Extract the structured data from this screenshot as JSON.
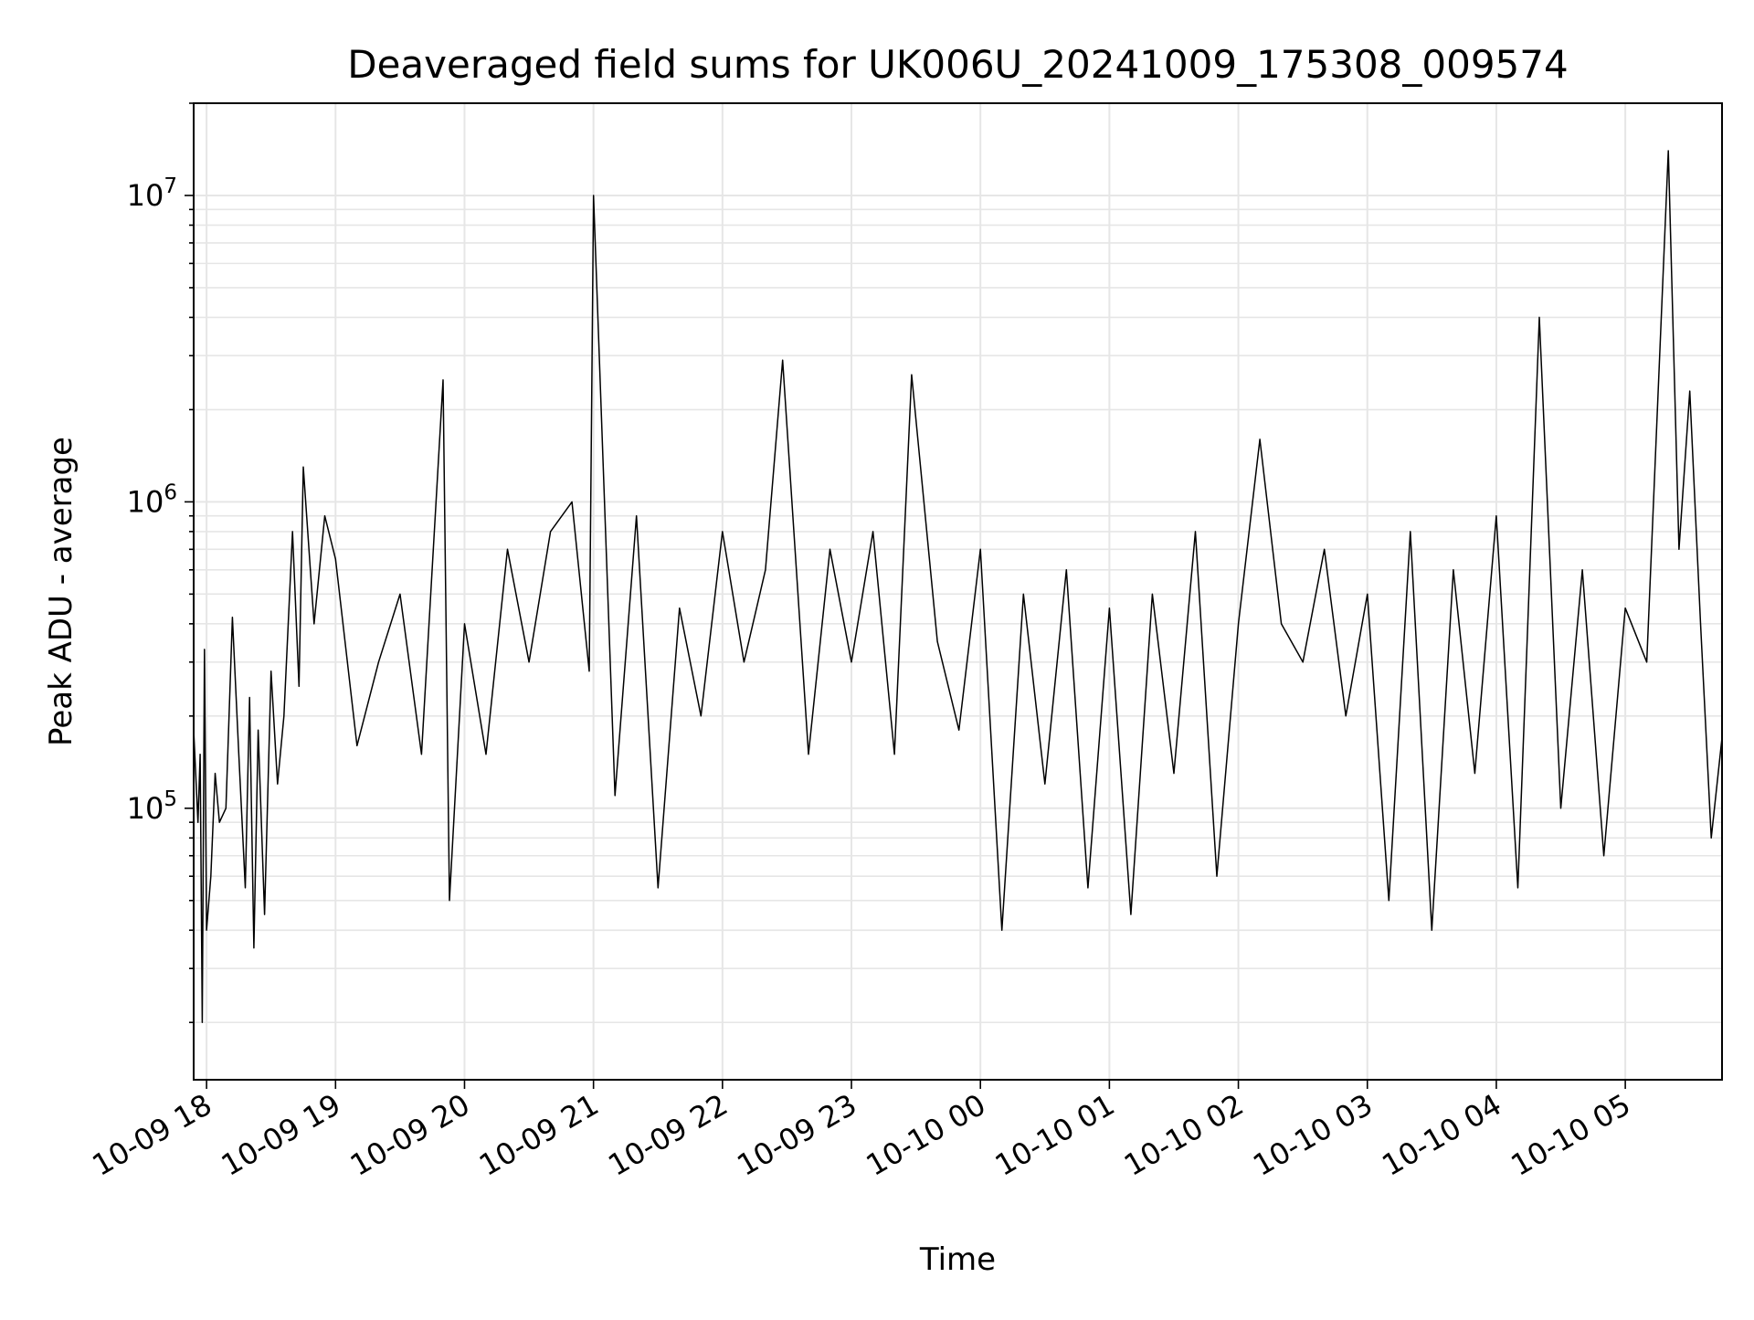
{
  "chart_data": {
    "type": "line",
    "title": "Deaveraged field sums for UK006U_20241009_175308_009574",
    "xlabel": "Time",
    "ylabel": "Peak ADU - average",
    "xlim": [
      "2024-10-09 17:54",
      "2024-10-10 05:45"
    ],
    "ylim": [
      13000,
      20000000
    ],
    "yscale": "log",
    "grid": true,
    "line_color": "#000000",
    "grid_color": "#e6e6e6",
    "x_ticks": [
      {
        "t": "2024-10-09 18:00",
        "label": "10-09 18"
      },
      {
        "t": "2024-10-09 19:00",
        "label": "10-09 19"
      },
      {
        "t": "2024-10-09 20:00",
        "label": "10-09 20"
      },
      {
        "t": "2024-10-09 21:00",
        "label": "10-09 21"
      },
      {
        "t": "2024-10-09 22:00",
        "label": "10-09 22"
      },
      {
        "t": "2024-10-09 23:00",
        "label": "10-09 23"
      },
      {
        "t": "2024-10-10 00:00",
        "label": "10-10 00"
      },
      {
        "t": "2024-10-10 01:00",
        "label": "10-10 01"
      },
      {
        "t": "2024-10-10 02:00",
        "label": "10-10 02"
      },
      {
        "t": "2024-10-10 03:00",
        "label": "10-10 03"
      },
      {
        "t": "2024-10-10 04:00",
        "label": "10-10 04"
      },
      {
        "t": "2024-10-10 05:00",
        "label": "10-10 05"
      }
    ],
    "y_ticks": [
      {
        "value": 100000,
        "base": "10",
        "exp": "5"
      },
      {
        "value": 1000000,
        "base": "10",
        "exp": "6"
      },
      {
        "value": 10000000,
        "base": "10",
        "exp": "7"
      }
    ],
    "series": [
      {
        "x": [
          "2024-10-09 17:54",
          "2024-10-09 17:56",
          "2024-10-09 17:57",
          "2024-10-09 17:58",
          "2024-10-09 17:59",
          "2024-10-09 18:00",
          "2024-10-09 18:02",
          "2024-10-09 18:04",
          "2024-10-09 18:06",
          "2024-10-09 18:09",
          "2024-10-09 18:12",
          "2024-10-09 18:15",
          "2024-10-09 18:18",
          "2024-10-09 18:20",
          "2024-10-09 18:22",
          "2024-10-09 18:24",
          "2024-10-09 18:27",
          "2024-10-09 18:30",
          "2024-10-09 18:33",
          "2024-10-09 18:36",
          "2024-10-09 18:40",
          "2024-10-09 18:43",
          "2024-10-09 18:45",
          "2024-10-09 18:50",
          "2024-10-09 18:55",
          "2024-10-09 19:00",
          "2024-10-09 19:10",
          "2024-10-09 19:20",
          "2024-10-09 19:30",
          "2024-10-09 19:40",
          "2024-10-09 19:50",
          "2024-10-09 19:53",
          "2024-10-09 20:00",
          "2024-10-09 20:10",
          "2024-10-09 20:20",
          "2024-10-09 20:30",
          "2024-10-09 20:40",
          "2024-10-09 20:50",
          "2024-10-09 20:58",
          "2024-10-09 21:00",
          "2024-10-09 21:10",
          "2024-10-09 21:20",
          "2024-10-09 21:30",
          "2024-10-09 21:40",
          "2024-10-09 21:50",
          "2024-10-09 22:00",
          "2024-10-09 22:10",
          "2024-10-09 22:20",
          "2024-10-09 22:28",
          "2024-10-09 22:40",
          "2024-10-09 22:50",
          "2024-10-09 23:00",
          "2024-10-09 23:10",
          "2024-10-09 23:20",
          "2024-10-09 23:28",
          "2024-10-09 23:40",
          "2024-10-09 23:50",
          "2024-10-10 00:00",
          "2024-10-10 00:10",
          "2024-10-10 00:20",
          "2024-10-10 00:30",
          "2024-10-10 00:40",
          "2024-10-10 00:50",
          "2024-10-10 01:00",
          "2024-10-10 01:10",
          "2024-10-10 01:20",
          "2024-10-10 01:30",
          "2024-10-10 01:40",
          "2024-10-10 01:50",
          "2024-10-10 02:00",
          "2024-10-10 02:10",
          "2024-10-10 02:20",
          "2024-10-10 02:30",
          "2024-10-10 02:40",
          "2024-10-10 02:50",
          "2024-10-10 03:00",
          "2024-10-10 03:10",
          "2024-10-10 03:20",
          "2024-10-10 03:30",
          "2024-10-10 03:40",
          "2024-10-10 03:50",
          "2024-10-10 04:00",
          "2024-10-10 04:10",
          "2024-10-10 04:20",
          "2024-10-10 04:30",
          "2024-10-10 04:40",
          "2024-10-10 04:50",
          "2024-10-10 05:00",
          "2024-10-10 05:10",
          "2024-10-10 05:20",
          "2024-10-10 05:25",
          "2024-10-10 05:30",
          "2024-10-10 05:35",
          "2024-10-10 05:40",
          "2024-10-10 05:45"
        ],
        "values": [
          180000,
          90000,
          150000,
          20000,
          330000,
          40000,
          60000,
          130000,
          90000,
          100000,
          420000,
          150000,
          55000,
          230000,
          35000,
          180000,
          45000,
          280000,
          120000,
          200000,
          800000,
          250000,
          1300000,
          400000,
          900000,
          650000,
          160000,
          300000,
          500000,
          150000,
          2500000,
          50000,
          400000,
          150000,
          700000,
          300000,
          800000,
          1000000,
          280000,
          10000000,
          110000,
          900000,
          55000,
          450000,
          200000,
          800000,
          300000,
          600000,
          2900000,
          150000,
          700000,
          300000,
          800000,
          150000,
          2600000,
          350000,
          180000,
          700000,
          40000,
          500000,
          120000,
          600000,
          55000,
          450000,
          45000,
          500000,
          130000,
          800000,
          60000,
          400000,
          1600000,
          400000,
          300000,
          700000,
          200000,
          500000,
          50000,
          800000,
          40000,
          600000,
          130000,
          900000,
          55000,
          4000000,
          100000,
          600000,
          70000,
          450000,
          300000,
          14000000,
          700000,
          2300000,
          400000,
          80000,
          170000
        ]
      }
    ]
  }
}
